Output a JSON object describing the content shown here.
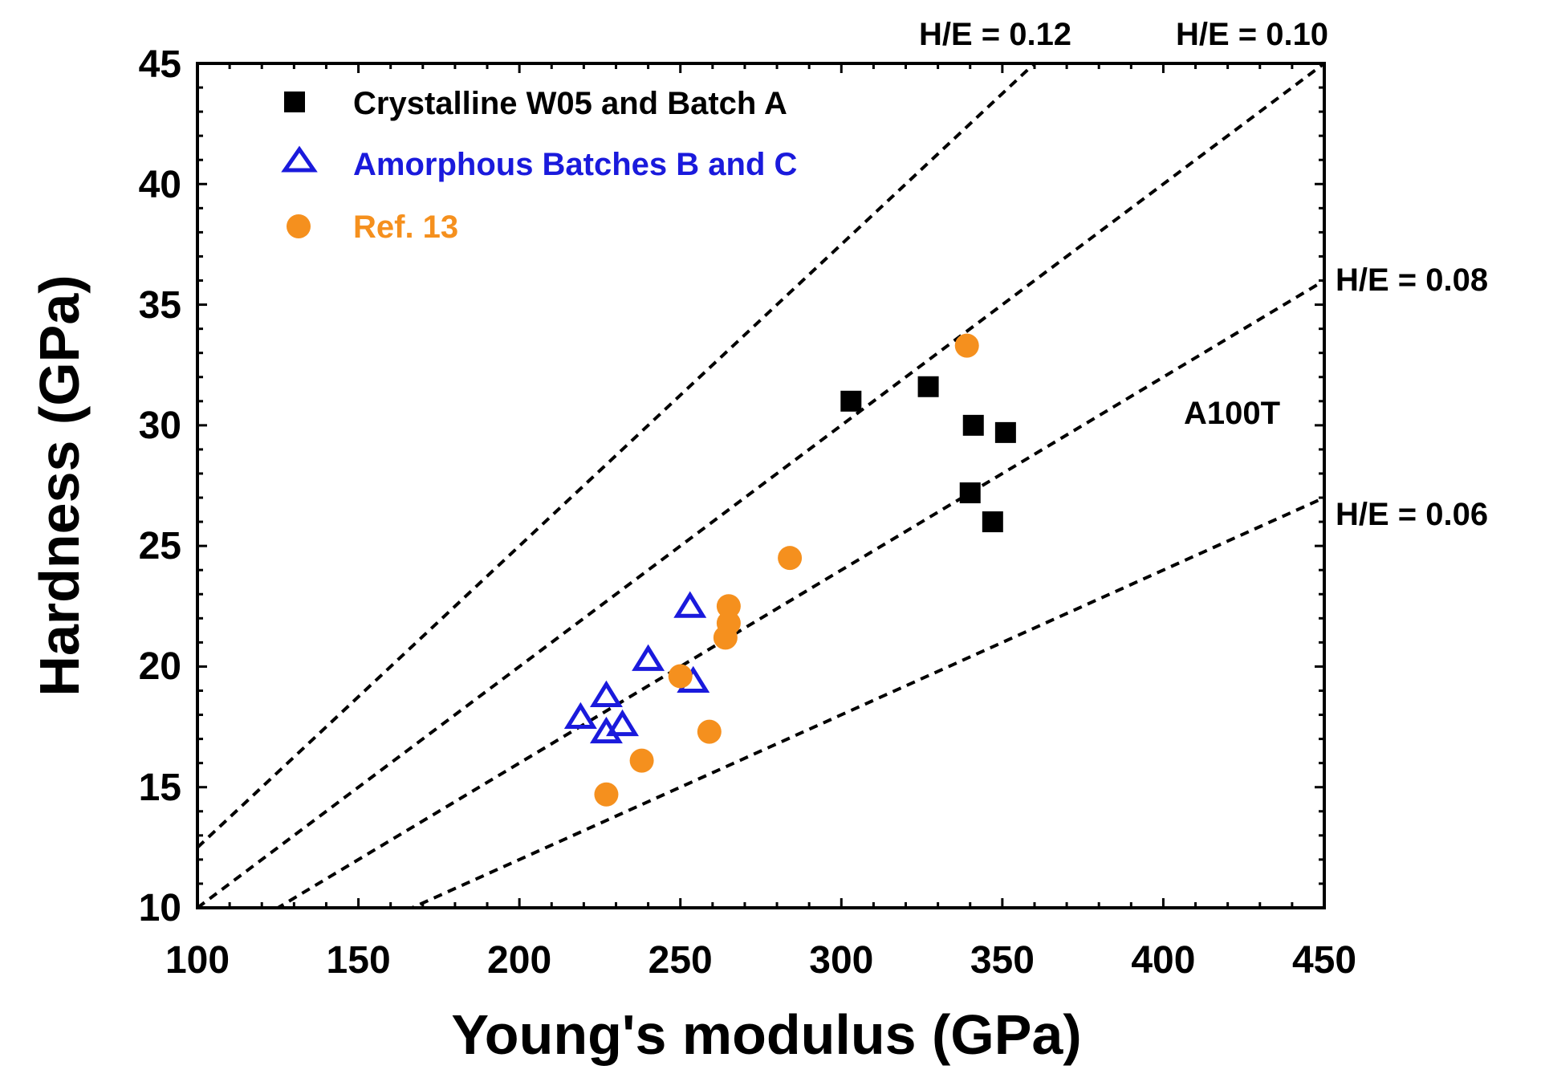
{
  "chart_data": {
    "type": "scatter",
    "title": "",
    "xlabel": "Young's modulus (GPa)",
    "ylabel": "Hardness (GPa)",
    "xlim": [
      100,
      450
    ],
    "ylim": [
      10,
      45
    ],
    "xticks": [
      "100",
      "150",
      "200",
      "250",
      "300",
      "350",
      "400",
      "450"
    ],
    "yticks": [
      "10",
      "15",
      "20",
      "25",
      "30",
      "35",
      "40",
      "45"
    ],
    "grid": false,
    "legend_position": "top-left",
    "colors": {
      "crystalline": "#000000",
      "amorphous": "#1a1adc",
      "ref": "#f5901e",
      "lines": "#000000"
    },
    "series": [
      {
        "name": "Crystalline W05 and Batch A",
        "marker": "square",
        "points": [
          {
            "x": 303,
            "y": 31.0
          },
          {
            "x": 327,
            "y": 31.6
          },
          {
            "x": 341,
            "y": 30.0
          },
          {
            "x": 351,
            "y": 29.7
          },
          {
            "x": 340,
            "y": 27.2
          },
          {
            "x": 347,
            "y": 26.0
          }
        ]
      },
      {
        "name": "Amorphous Batches B and C",
        "marker": "triangle-open",
        "points": [
          {
            "x": 253,
            "y": 22.5
          },
          {
            "x": 240,
            "y": 20.3
          },
          {
            "x": 254,
            "y": 19.4
          },
          {
            "x": 227,
            "y": 18.8
          },
          {
            "x": 219,
            "y": 17.9
          },
          {
            "x": 232,
            "y": 17.6
          },
          {
            "x": 227,
            "y": 17.3
          }
        ]
      },
      {
        "name": "Ref. 13",
        "marker": "circle",
        "points": [
          {
            "x": 339,
            "y": 33.3
          },
          {
            "x": 284,
            "y": 24.5
          },
          {
            "x": 265,
            "y": 22.5
          },
          {
            "x": 265,
            "y": 21.8
          },
          {
            "x": 264,
            "y": 21.2
          },
          {
            "x": 250,
            "y": 19.6
          },
          {
            "x": 259,
            "y": 17.3
          },
          {
            "x": 238,
            "y": 16.1
          },
          {
            "x": 227,
            "y": 14.7
          }
        ]
      }
    ],
    "reference_lines": [
      {
        "label": "H/E = 0.12",
        "slope": 0.125
      },
      {
        "label": "H/E = 0.10",
        "slope": 0.1
      },
      {
        "label": "H/E = 0.08",
        "slope": 0.08
      },
      {
        "label": "H/E = 0.06",
        "slope": 0.06
      }
    ],
    "annotations": [
      {
        "text": "A100T",
        "x": 405,
        "y": 30.5
      }
    ]
  }
}
